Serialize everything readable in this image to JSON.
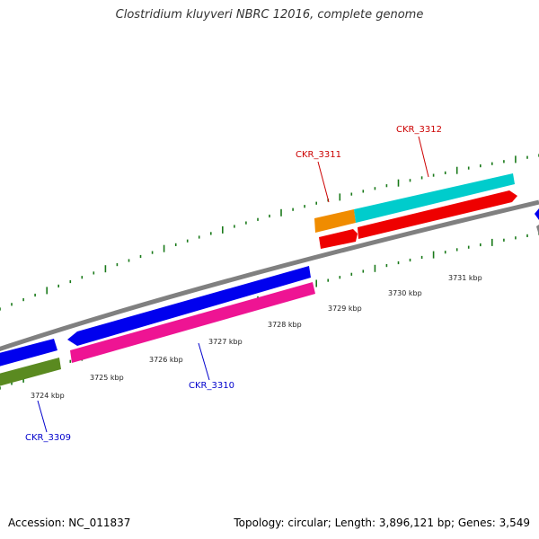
{
  "title": "Clostridium kluyveri NBRC 12016, complete genome",
  "footer": {
    "accession": "Accession: NC_011837",
    "stats": "Topology: circular; Length: 3,896,121 bp; Genes: 3,549"
  },
  "scale_labels": [
    "3724 kbp",
    "3725 kbp",
    "3726 kbp",
    "3727 kbp",
    "3728 kbp",
    "3729 kbp",
    "3730 kbp",
    "3731 kbp"
  ],
  "genes": [
    {
      "label": "CKR_3309",
      "color": "#0000cc"
    },
    {
      "label": "CKR_3310",
      "color": "#0000cc"
    },
    {
      "label": "CKR_3311",
      "color": "#cc0000"
    },
    {
      "label": "CKR_3312",
      "color": "#cc0000"
    }
  ],
  "colors": {
    "backbone": "#808080",
    "tick": "#1a7a1a",
    "blue": "#0000ee",
    "pink": "#ee1493",
    "olive": "#5a8a20",
    "orange": "#f08c00",
    "cyan": "#00cccc",
    "red": "#ee0000"
  }
}
